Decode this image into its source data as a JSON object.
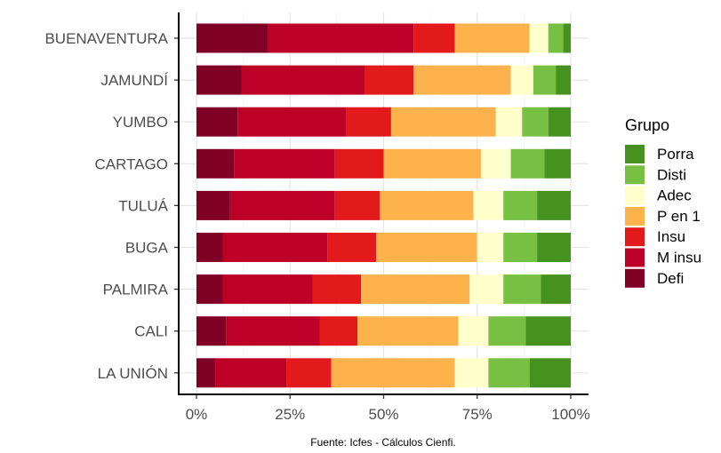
{
  "chart_data": {
    "type": "bar",
    "orientation": "horizontal",
    "stacked": true,
    "normalized": true,
    "categories": [
      "BUENAVENTURA",
      "JAMUNDÍ",
      "YUMBO",
      "CARTAGO",
      "TULUÁ",
      "BUGA",
      "PALMIRA",
      "CALI",
      "LA UNIÓN"
    ],
    "xlim": [
      0,
      1
    ],
    "xticks": [
      {
        "value": 0,
        "label": "0%"
      },
      {
        "value": 0.25,
        "label": "25%"
      },
      {
        "value": 0.5,
        "label": "50%"
      },
      {
        "value": 0.75,
        "label": "75%"
      },
      {
        "value": 1,
        "label": "100%"
      }
    ],
    "grid": true,
    "legend": {
      "title": "Grupo",
      "placement": "right",
      "order": [
        "Porra",
        "Disti",
        "Adec",
        "P en 1",
        "Insu",
        "M insu",
        "Defi"
      ]
    },
    "stack_order": [
      "Defi",
      "M insu",
      "Insu",
      "P en 1",
      "Adec",
      "Disti",
      "Porra"
    ],
    "series": [
      {
        "name": "Defi",
        "color": "#800026",
        "values": [
          0.19,
          0.12,
          0.11,
          0.1,
          0.09,
          0.07,
          0.07,
          0.08,
          0.05
        ]
      },
      {
        "name": "M insu",
        "color": "#bd0026",
        "values": [
          0.39,
          0.33,
          0.29,
          0.27,
          0.28,
          0.28,
          0.24,
          0.25,
          0.19
        ]
      },
      {
        "name": "Insu",
        "color": "#e31a1c",
        "values": [
          0.11,
          0.13,
          0.12,
          0.13,
          0.12,
          0.13,
          0.13,
          0.1,
          0.12
        ]
      },
      {
        "name": "P en 1",
        "color": "#feb24c",
        "values": [
          0.2,
          0.26,
          0.28,
          0.26,
          0.25,
          0.27,
          0.29,
          0.27,
          0.33
        ]
      },
      {
        "name": "Adec",
        "color": "#ffffcc",
        "values": [
          0.05,
          0.06,
          0.07,
          0.08,
          0.08,
          0.07,
          0.09,
          0.08,
          0.09
        ]
      },
      {
        "name": "Disti",
        "color": "#78c043",
        "values": [
          0.04,
          0.06,
          0.07,
          0.09,
          0.09,
          0.09,
          0.1,
          0.1,
          0.11
        ]
      },
      {
        "name": "Porra",
        "color": "#46921f",
        "values": [
          0.02,
          0.04,
          0.06,
          0.07,
          0.09,
          0.09,
          0.08,
          0.12,
          0.11
        ]
      }
    ],
    "caption": "Fuente: Icfes - Cálculos Cienfi."
  }
}
